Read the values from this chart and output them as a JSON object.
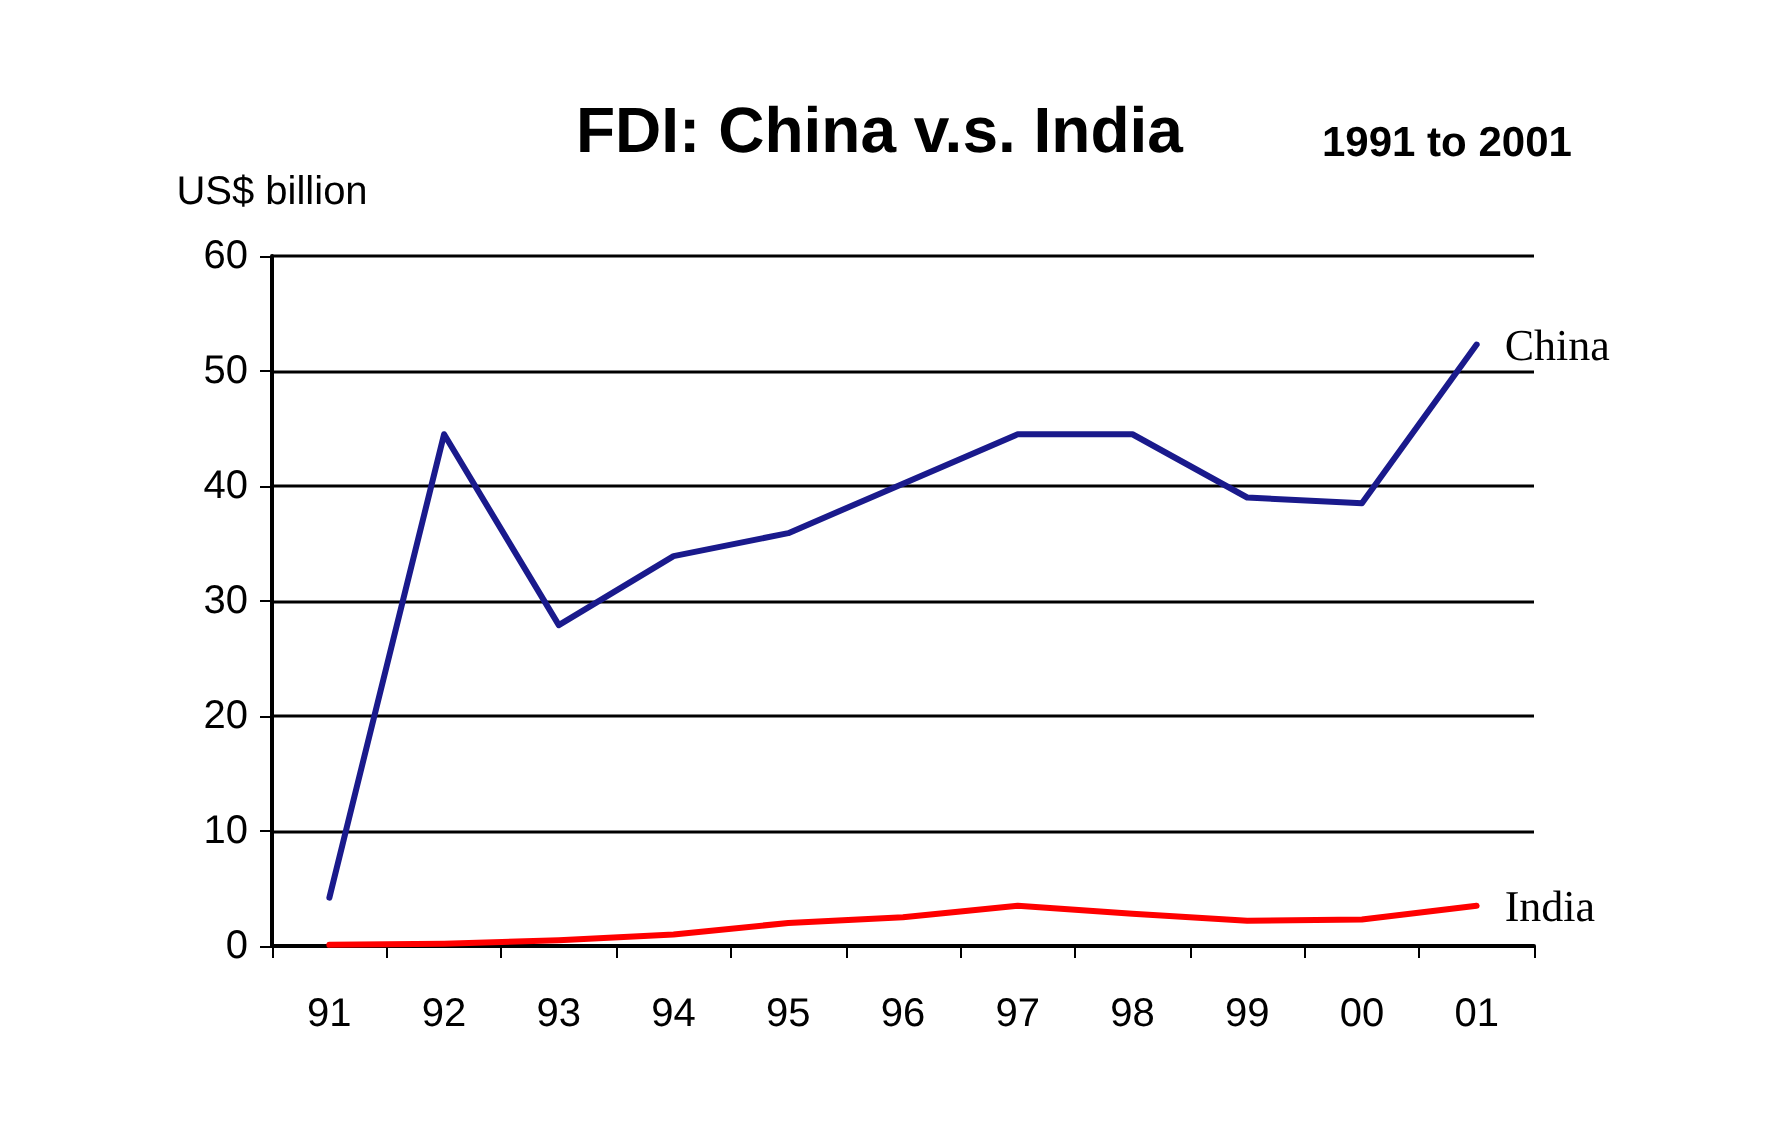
{
  "chart_data": {
    "type": "line",
    "title": "FDI: China v.s. India",
    "subtitle": "1991 to 2001",
    "ylabel": "US$ billion",
    "categories": [
      "91",
      "92",
      "93",
      "94",
      "95",
      "96",
      "97",
      "98",
      "99",
      "00",
      "01"
    ],
    "series": [
      {
        "name": "China",
        "color": "#1a1a8c",
        "values": [
          4.2,
          44.5,
          27.9,
          33.9,
          35.9,
          40.2,
          44.5,
          44.5,
          39,
          38.5,
          52.3
        ]
      },
      {
        "name": "India",
        "color": "#ff0000",
        "values": [
          0.1,
          0.2,
          0.5,
          1,
          2,
          2.5,
          3.5,
          2.8,
          2.2,
          2.3,
          3.5
        ]
      }
    ],
    "ylim": [
      0,
      60
    ],
    "yticks": [
      0,
      10,
      20,
      30,
      40,
      50,
      60
    ],
    "grid": "y",
    "legend": false,
    "marker": "none",
    "line_style": "solid"
  }
}
